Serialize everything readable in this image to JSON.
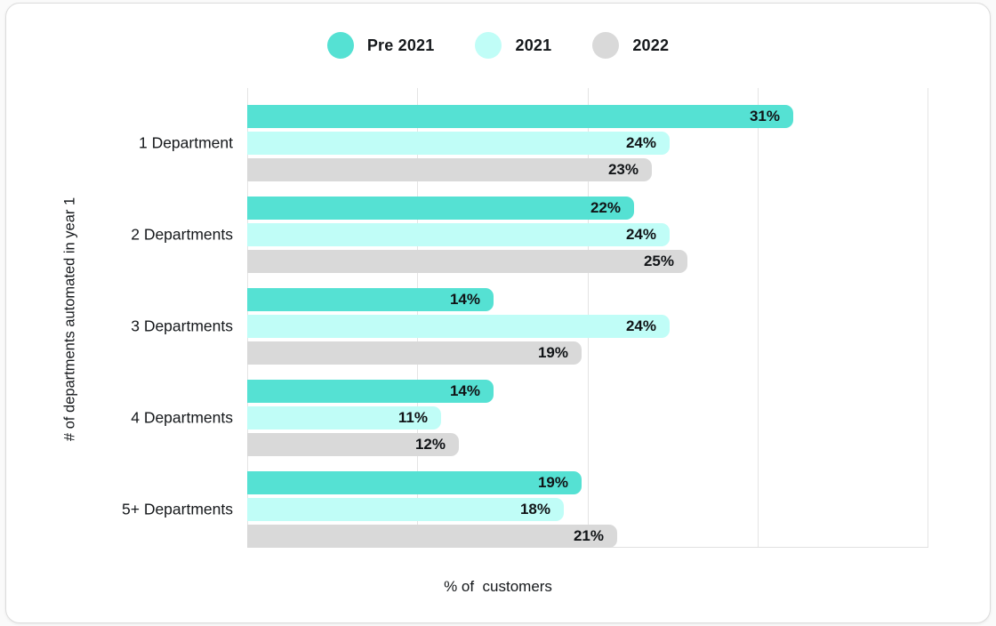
{
  "theme": {
    "card_background": "#ffffff",
    "page_background": "#fafafa",
    "card_border": "#dcdcdc",
    "grid_color": "#e4e4e4",
    "text_color": "#15181b"
  },
  "chart_data": {
    "type": "bar",
    "orientation": "horizontal",
    "categories": [
      "1 Department",
      "2 Departments",
      "3 Departments",
      "4 Departments",
      "5+ Departments"
    ],
    "series": [
      {
        "name": "Pre 2021",
        "color": "#55e1d3",
        "values": [
          31,
          22,
          14,
          14,
          19
        ]
      },
      {
        "name": "2021",
        "color": "#c0fdf7",
        "values": [
          24,
          24,
          24,
          11,
          18
        ]
      },
      {
        "name": "2022",
        "color": "#d9d9d9",
        "values": [
          23,
          25,
          19,
          12,
          21
        ]
      }
    ],
    "value_suffix": "%",
    "xlabel": "% of  customers",
    "ylabel": "# of departments automated in year 1",
    "xlim": [
      0,
      38.7
    ],
    "gridline_count": 5,
    "grid": "vertical",
    "legend_position": "top-center",
    "value_labels": "inside-end"
  }
}
